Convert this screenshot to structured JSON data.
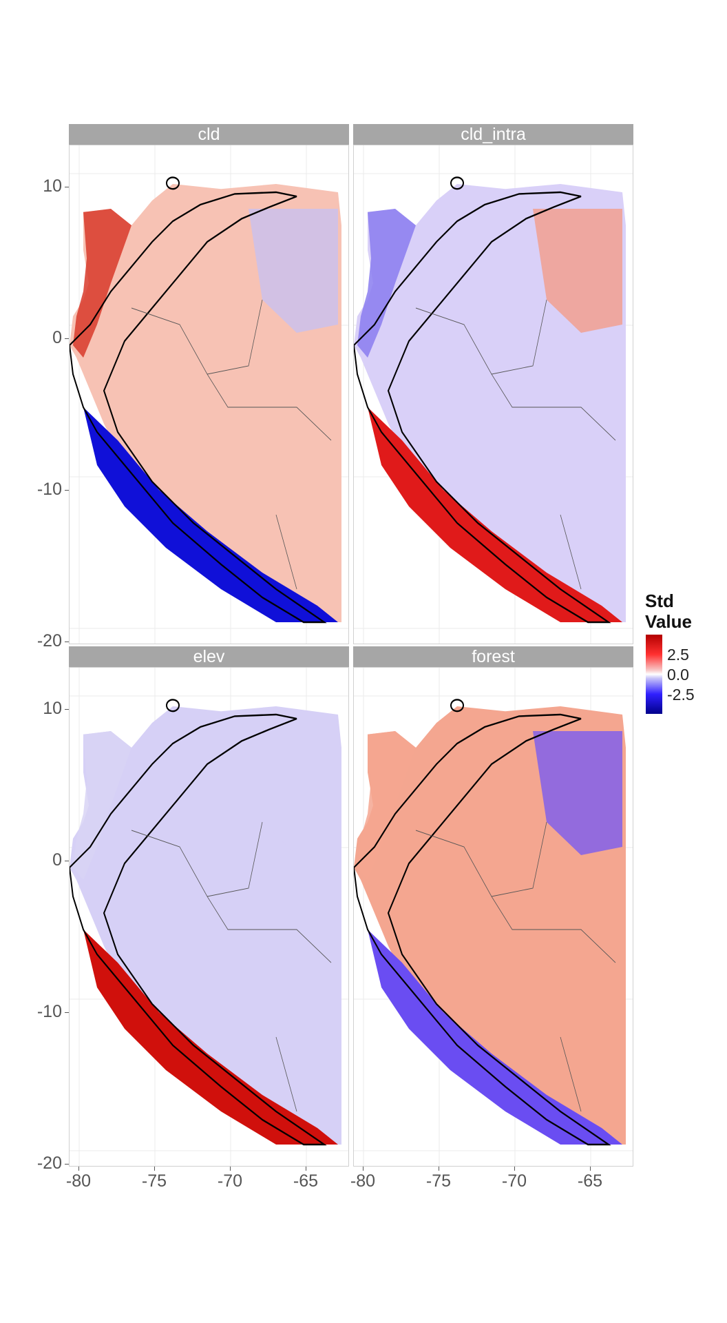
{
  "panels": [
    {
      "title": "cld",
      "colors": {
        "west_coast_north": "#d83a2a",
        "interior": "#f7c2b4",
        "andes_south": "#1010d8",
        "highlands": "#c8c0f0"
      }
    },
    {
      "title": "cld_intra",
      "colors": {
        "west_coast_north": "#8a7cf0",
        "interior": "#d9d0f8",
        "andes_south": "#e01a1a",
        "highlands": "#f29c8a"
      }
    },
    {
      "title": "elev",
      "colors": {
        "west_coast_north": "#d8d4f4",
        "interior": "#d6d0f6",
        "andes_south": "#d0100c",
        "highlands": "#d6d0f6"
      }
    },
    {
      "title": "forest",
      "colors": {
        "west_coast_north": "#f4a690",
        "interior": "#f4a690",
        "andes_south": "#6a4df2",
        "highlands": "#7a5cf0"
      }
    }
  ],
  "y_axis": {
    "ticks": [
      "10",
      "0",
      "-10",
      "-20"
    ]
  },
  "x_axis": {
    "ticks": [
      "-80",
      "-75",
      "-70",
      "-65"
    ]
  },
  "legend": {
    "title_line1": "Std",
    "title_line2": "Value",
    "labels": [
      "2.5",
      "0.0",
      "-2.5"
    ],
    "colors": {
      "high": "#b30000",
      "mid": "#ffffff",
      "low": "#00008b"
    }
  }
}
